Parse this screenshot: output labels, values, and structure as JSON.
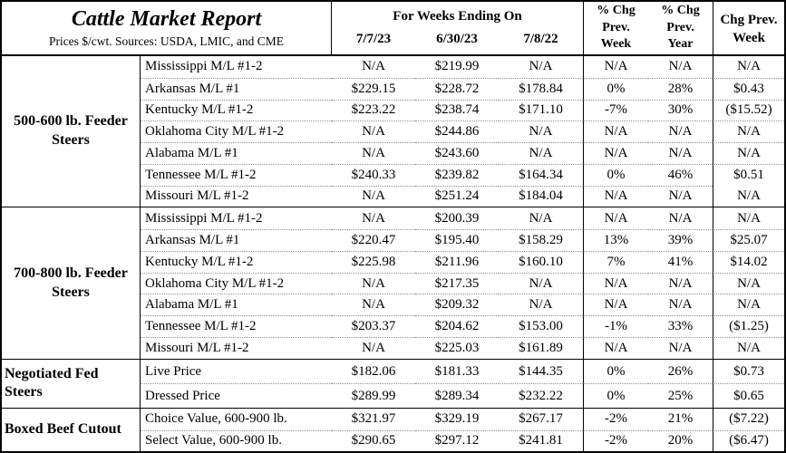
{
  "header": {
    "title": "Cattle Market Report",
    "subtitle": "Prices $/cwt. Sources: USDA, LMIC, and CME",
    "weeks_label": "For Weeks Ending On",
    "dates": [
      "7/7/23",
      "6/30/23",
      "7/8/22"
    ],
    "pct_week": [
      "% Chg",
      "Prev.",
      "Week"
    ],
    "pct_year": [
      "% Chg",
      "Prev.",
      "Year"
    ],
    "chg_week": [
      "Chg Prev.",
      "Week"
    ]
  },
  "colors": {
    "border": "#000000",
    "grid_dotted": "#909090",
    "background": "#ffffff",
    "text": "#000000"
  },
  "groups": [
    {
      "id": "feeder-steers-500-600",
      "label": [
        "500-600 lb. Feeder",
        "Steers"
      ],
      "rows": [
        {
          "label": "Mississippi M/L #1-2",
          "values": [
            "N/A",
            "$219.99",
            "N/A",
            "N/A",
            "N/A",
            "N/A"
          ]
        },
        {
          "label": "Arkansas M/L #1",
          "values": [
            "$229.15",
            "$228.72",
            "$178.84",
            "0%",
            "28%",
            "$0.43"
          ]
        },
        {
          "label": "Kentucky M/L #1-2",
          "values": [
            "$223.22",
            "$238.74",
            "$171.10",
            "-7%",
            "30%",
            "($15.52)"
          ]
        },
        {
          "label": "Oklahoma City M/L #1-2",
          "values": [
            "N/A",
            "$244.86",
            "N/A",
            "N/A",
            "N/A",
            "N/A"
          ]
        },
        {
          "label": "Alabama M/L #1",
          "values": [
            "N/A",
            "$243.60",
            "N/A",
            "N/A",
            "N/A",
            "N/A"
          ]
        },
        {
          "label": "Tennessee M/L #1-2",
          "values": [
            "$240.33",
            "$239.82",
            "$164.34",
            "0%",
            "46%",
            "$0.51"
          ]
        },
        {
          "label": "Missouri M/L #1-2",
          "values": [
            "N/A",
            "$251.24",
            "$184.04",
            "N/A",
            "N/A",
            "N/A"
          ]
        }
      ]
    },
    {
      "id": "feeder-steers-700-800",
      "label": [
        "700-800 lb. Feeder",
        "Steers"
      ],
      "rows": [
        {
          "label": "Mississippi M/L #1-2",
          "values": [
            "N/A",
            "$200.39",
            "N/A",
            "N/A",
            "N/A",
            "N/A"
          ]
        },
        {
          "label": "Arkansas M/L #1",
          "values": [
            "$220.47",
            "$195.40",
            "$158.29",
            "13%",
            "39%",
            "$25.07"
          ]
        },
        {
          "label": "Kentucky M/L #1-2",
          "values": [
            "$225.98",
            "$211.96",
            "$160.10",
            "7%",
            "41%",
            "$14.02"
          ]
        },
        {
          "label": "Oklahoma City M/L #1-2",
          "values": [
            "N/A",
            "$217.35",
            "N/A",
            "N/A",
            "N/A",
            "N/A"
          ]
        },
        {
          "label": "Alabama M/L #1",
          "values": [
            "N/A",
            "$209.32",
            "N/A",
            "N/A",
            "N/A",
            "N/A"
          ]
        },
        {
          "label": "Tennessee M/L #1-2",
          "values": [
            "$203.37",
            "$204.62",
            "$153.00",
            "-1%",
            "33%",
            "($1.25)"
          ]
        },
        {
          "label": "Missouri M/L #1-2",
          "values": [
            "N/A",
            "$225.03",
            "$161.89",
            "N/A",
            "N/A",
            "N/A"
          ]
        }
      ]
    },
    {
      "id": "negotiated-fed-steers",
      "label": [
        "Negotiated Fed",
        "Steers"
      ],
      "rows": [
        {
          "label": "Live Price",
          "values": [
            "$182.06",
            "$181.33",
            "$144.35",
            "0%",
            "26%",
            "$0.73"
          ]
        },
        {
          "label": "Dressed Price",
          "values": [
            "$289.99",
            "$289.34",
            "$232.22",
            "0%",
            "25%",
            "$0.65"
          ]
        }
      ]
    },
    {
      "id": "boxed-beef-cutout",
      "label": [
        "Boxed Beef Cutout"
      ],
      "rows": [
        {
          "label": "Choice Value, 600-900 lb.",
          "values": [
            "$321.97",
            "$329.19",
            "$267.17",
            "-2%",
            "21%",
            "($7.22)"
          ]
        },
        {
          "label": "Select Value, 600-900 lb.",
          "values": [
            "$290.65",
            "$297.12",
            "$241.81",
            "-2%",
            "20%",
            "($6.47)"
          ]
        }
      ]
    }
  ]
}
